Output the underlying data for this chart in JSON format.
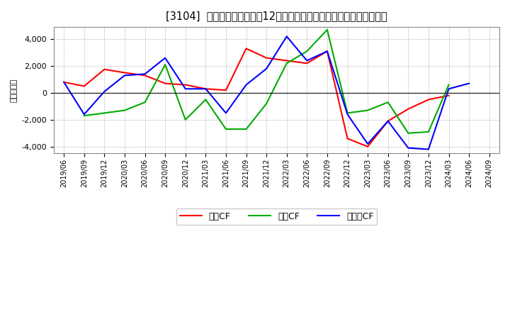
{
  "title": "[3104]  キャッシュフローの12か月移動合計の対前年同期増減額の推移",
  "ylabel": "（百万円）",
  "background_color": "#ffffff",
  "plot_bg_color": "#ffffff",
  "grid_color": "#999999",
  "ylim": [
    -4500,
    4900
  ],
  "yticks": [
    -4000,
    -2000,
    0,
    2000,
    4000
  ],
  "x_labels": [
    "2019/06",
    "2019/09",
    "2019/12",
    "2020/03",
    "2020/06",
    "2020/09",
    "2020/12",
    "2021/03",
    "2021/06",
    "2021/09",
    "2021/12",
    "2022/03",
    "2022/06",
    "2022/09",
    "2022/12",
    "2023/03",
    "2023/06",
    "2023/09",
    "2023/12",
    "2024/03",
    "2024/06",
    "2024/09"
  ],
  "operating_cf": [
    800,
    500,
    1750,
    1500,
    1300,
    700,
    600,
    300,
    200,
    3300,
    2600,
    2400,
    2200,
    3100,
    -3400,
    -4000,
    -2100,
    -1200,
    -500,
    -200,
    null,
    null
  ],
  "investing_cf": [
    null,
    -1700,
    -1500,
    -1300,
    -700,
    2100,
    -2000,
    -500,
    -2700,
    -2700,
    -800,
    2200,
    3100,
    4700,
    -1500,
    -1300,
    -700,
    -3000,
    -2900,
    600,
    null,
    null
  ],
  "free_cf": [
    800,
    -1600,
    100,
    1300,
    1400,
    2600,
    300,
    300,
    -1500,
    600,
    1800,
    4200,
    2400,
    3100,
    -1600,
    -3800,
    -2100,
    -4100,
    -4200,
    300,
    700,
    null
  ],
  "op_color": "#ff0000",
  "inv_color": "#00aa00",
  "free_color": "#0000ff",
  "legend_labels": [
    "営業CF",
    "投資CF",
    "フリーCF"
  ]
}
